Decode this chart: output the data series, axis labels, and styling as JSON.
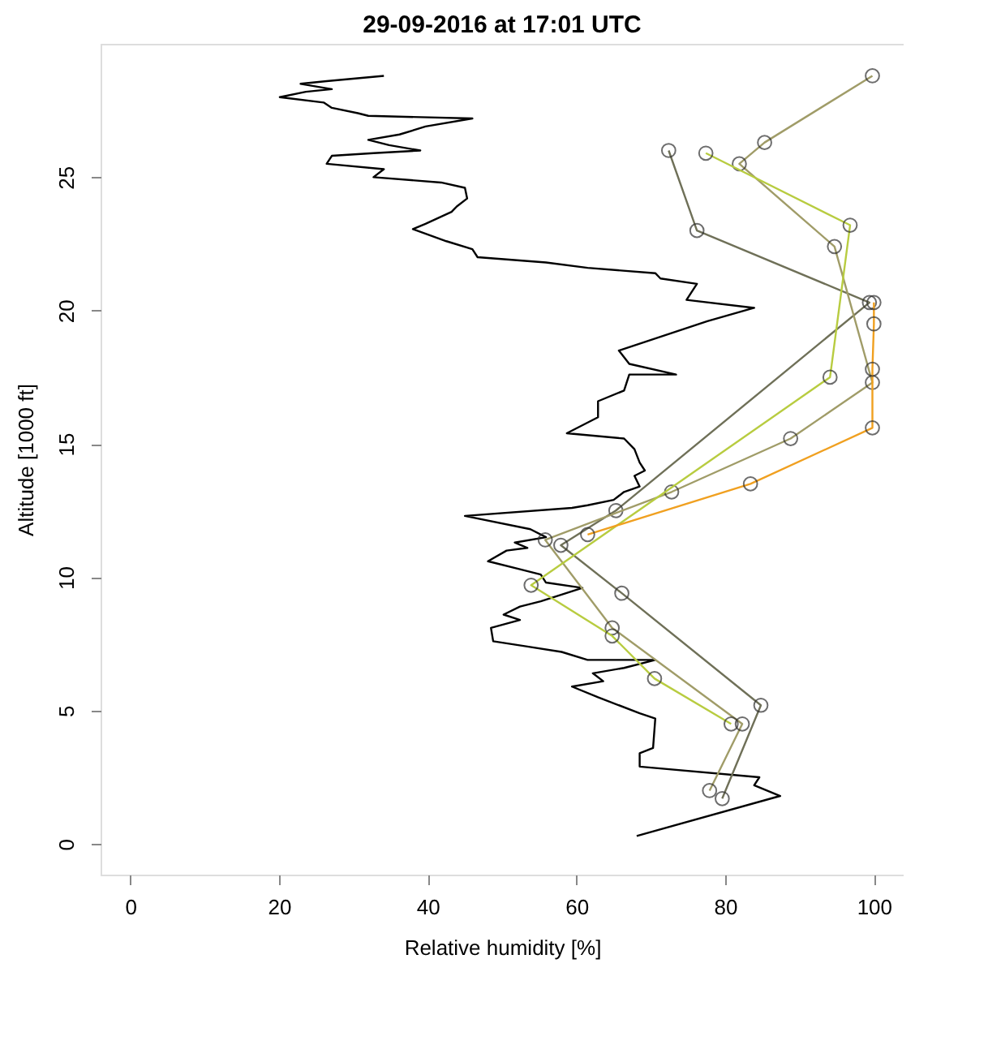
{
  "chart_data": {
    "type": "line",
    "title": "29-09-2016 at 17:01 UTC",
    "xlabel": "Relative humidity [%]",
    "ylabel": "Altitude [1000 ft]",
    "xlim": [
      -4,
      104
    ],
    "ylim": [
      -1.15,
      30
    ],
    "xticks": [
      0,
      20,
      40,
      60,
      80,
      100
    ],
    "yticks": [
      0,
      5,
      10,
      15,
      20,
      25
    ],
    "grid": false,
    "legend": false,
    "series": [
      {
        "color": "#000000",
        "marker": "none",
        "x": [
          68.1,
          87.4,
          83.9,
          84.6,
          68.5,
          68.5,
          70.3,
          70.6,
          68.5,
          62.9,
          59.4,
          63.6,
          62.2,
          66.4,
          70.6,
          61.5,
          58.0,
          53.4,
          48.8,
          48.5,
          52.4,
          50.2,
          52.4,
          55.2,
          60.8,
          55.9,
          55.2,
          52.4,
          48.1,
          50.6,
          53.4,
          51.7,
          55.9,
          53.8,
          45.0,
          59.4,
          61.5,
          65.0,
          66.4,
          68.5,
          67.8,
          69.2,
          68.5,
          67.8,
          66.4,
          58.7,
          62.9,
          62.9,
          66.4,
          67.1,
          73.4,
          67.1,
          65.7,
          77.6,
          83.9,
          74.8,
          76.2,
          71.3,
          70.6,
          61.5,
          55.9,
          46.7,
          46.0,
          42.5,
          38.0,
          39.7,
          43.2,
          43.9,
          45.3,
          45.0,
          41.8,
          32.7,
          34.1,
          26.4,
          27.1,
          32.7,
          39.0,
          34.8,
          32.0,
          36.2,
          39.7,
          46.0,
          32.0,
          30.6,
          27.1,
          26.0,
          20.1,
          23.6,
          27.1,
          22.9,
          26.4,
          34.1
        ],
        "values": [
          0.3,
          1.8,
          2.2,
          2.5,
          2.9,
          3.4,
          3.6,
          4.7,
          4.9,
          5.5,
          5.9,
          6.1,
          6.4,
          6.6,
          6.9,
          6.9,
          7.2,
          7.4,
          7.6,
          8.1,
          8.4,
          8.6,
          8.9,
          9.1,
          9.6,
          9.8,
          10.1,
          10.3,
          10.6,
          11.0,
          11.1,
          11.3,
          11.5,
          11.8,
          12.3,
          12.6,
          12.7,
          12.9,
          13.2,
          13.4,
          13.8,
          14.0,
          14.3,
          14.8,
          15.2,
          15.4,
          16.0,
          16.6,
          17.0,
          17.6,
          17.6,
          18.0,
          18.5,
          19.6,
          20.1,
          20.4,
          21.0,
          21.2,
          21.4,
          21.6,
          21.8,
          22.0,
          22.3,
          22.6,
          23.05,
          23.25,
          23.7,
          23.9,
          24.2,
          24.6,
          24.8,
          25.0,
          25.3,
          25.5,
          25.8,
          25.9,
          26.0,
          26.2,
          26.4,
          26.6,
          26.9,
          27.2,
          27.3,
          27.4,
          27.6,
          27.8,
          28.0,
          28.2,
          28.3,
          28.5,
          28.6,
          28.8
        ]
      },
      {
        "color": "#6f7058",
        "marker": "circle",
        "x": [
          79.6,
          84.8,
          66.1,
          57.9,
          65.3,
          99.4,
          76.2,
          72.4
        ],
        "values": [
          1.7,
          5.2,
          9.4,
          11.2,
          12.5,
          20.3,
          23.0,
          26.0
        ]
      },
      {
        "color": "#a09c68",
        "marker": "circle",
        "x": [
          77.9,
          82.3,
          64.8,
          55.8,
          72.8,
          88.8,
          99.8,
          94.7,
          81.9,
          85.3,
          99.8
        ],
        "values": [
          2.0,
          4.5,
          8.1,
          11.4,
          13.2,
          15.2,
          17.3,
          22.4,
          25.5,
          26.3,
          28.8
        ]
      },
      {
        "color": "#b8cc40",
        "marker": "circle",
        "x": [
          80.8,
          70.5,
          64.8,
          53.9,
          94.1,
          96.8,
          77.4
        ],
        "values": [
          4.5,
          6.2,
          7.8,
          9.7,
          17.5,
          23.2,
          25.9
        ]
      },
      {
        "color": "#f0a020",
        "marker": "circle",
        "x": [
          61.5,
          83.4,
          99.8,
          99.8,
          100,
          100
        ],
        "values": [
          11.6,
          13.5,
          15.6,
          17.8,
          19.5,
          20.3
        ]
      }
    ]
  }
}
